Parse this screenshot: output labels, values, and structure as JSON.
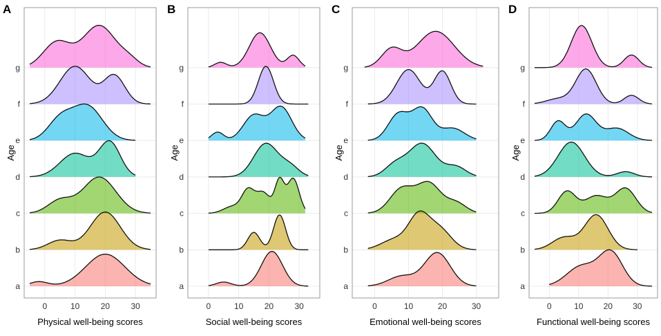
{
  "chart_data": [
    {
      "type": "ridgeline",
      "panel_label": "A",
      "xlabel": "Physical well-being scores",
      "ylabel": "Age",
      "xlim": [
        -5,
        35
      ],
      "xticks": [
        0,
        10,
        20,
        30
      ],
      "tick_labels": [
        "0",
        "10",
        "20",
        "30"
      ],
      "categories": [
        "a",
        "b",
        "c",
        "d",
        "e",
        "f",
        "g"
      ],
      "colors": [
        "#F8766D",
        "#C49A00",
        "#53B400",
        "#00C094",
        "#00B6EB",
        "#A58AFF",
        "#FB61D7"
      ],
      "series": [
        {
          "name": "a",
          "peaks": [
            {
              "mu": -2,
              "sd": 3,
              "h": 0.12
            },
            {
              "mu": 20,
              "sd": 6.5,
              "h": 0.85
            }
          ],
          "scale": 1.3,
          "range": [
            -5,
            35
          ]
        },
        {
          "name": "b",
          "peaks": [
            {
              "mu": 5,
              "sd": 4,
              "h": 0.25
            },
            {
              "mu": 20,
              "sd": 5,
              "h": 1.0
            }
          ],
          "scale": 1.3,
          "range": [
            -5,
            35
          ]
        },
        {
          "name": "c",
          "peaks": [
            {
              "mu": 5,
              "sd": 4,
              "h": 0.35
            },
            {
              "mu": 18,
              "sd": 5.5,
              "h": 1.0
            }
          ],
          "scale": 1.25,
          "range": [
            -5,
            35
          ]
        },
        {
          "name": "d",
          "peaks": [
            {
              "mu": 10,
              "sd": 5,
              "h": 0.65
            },
            {
              "mu": 21.5,
              "sd": 3.5,
              "h": 0.95
            }
          ],
          "scale": 1.25,
          "range": [
            -5,
            30
          ]
        },
        {
          "name": "e",
          "peaks": [
            {
              "mu": 5,
              "sd": 4,
              "h": 0.55
            },
            {
              "mu": 14,
              "sd": 5,
              "h": 0.95
            }
          ],
          "scale": 1.25,
          "range": [
            -5,
            30
          ]
        },
        {
          "name": "f",
          "peaks": [
            {
              "mu": 10,
              "sd": 5,
              "h": 1.0
            },
            {
              "mu": 23,
              "sd": 3.5,
              "h": 0.75
            }
          ],
          "scale": 1.3,
          "range": [
            -5,
            35
          ]
        },
        {
          "name": "g",
          "peaks": [
            {
              "mu": 4,
              "sd": 4.5,
              "h": 0.6
            },
            {
              "mu": 18,
              "sd": 5.5,
              "h": 1.0
            },
            {
              "mu": 28,
              "sd": 3,
              "h": 0.15
            }
          ],
          "scale": 1.45,
          "range": [
            -5,
            35
          ]
        }
      ]
    },
    {
      "type": "ridgeline",
      "panel_label": "B",
      "xlabel": "Social well-being scores",
      "ylabel": "Age",
      "xlim": [
        -5,
        35
      ],
      "xticks": [
        0,
        10,
        20,
        30
      ],
      "tick_labels": [
        "0",
        "10",
        "20",
        "30"
      ],
      "categories": [
        "a",
        "b",
        "c",
        "d",
        "e",
        "f",
        "g"
      ],
      "colors": [
        "#F8766D",
        "#C49A00",
        "#53B400",
        "#00C094",
        "#00B6EB",
        "#A58AFF",
        "#FB61D7"
      ],
      "series": [
        {
          "name": "a",
          "peaks": [
            {
              "mu": 5,
              "sd": 2.5,
              "h": 0.12
            },
            {
              "mu": 21,
              "sd": 3.5,
              "h": 1.0
            }
          ],
          "scale": 1.2,
          "range": [
            0,
            33
          ]
        },
        {
          "name": "b",
          "peaks": [
            {
              "mu": 15,
              "sd": 2,
              "h": 0.5
            },
            {
              "mu": 23.5,
              "sd": 2,
              "h": 1.0
            }
          ],
          "scale": 1.2,
          "range": [
            0,
            33
          ]
        },
        {
          "name": "c",
          "peaks": [
            {
              "mu": 8,
              "sd": 3,
              "h": 0.2
            },
            {
              "mu": 13,
              "sd": 2,
              "h": 0.6
            },
            {
              "mu": 18,
              "sd": 2.5,
              "h": 0.6
            },
            {
              "mu": 23.5,
              "sd": 1.5,
              "h": 0.9
            },
            {
              "mu": 28,
              "sd": 2,
              "h": 1.0
            }
          ],
          "scale": 1.2,
          "range": [
            0,
            32
          ]
        },
        {
          "name": "d",
          "peaks": [
            {
              "mu": 19,
              "sd": 4,
              "h": 1.0
            },
            {
              "mu": 27,
              "sd": 3,
              "h": 0.3
            }
          ],
          "scale": 1.15,
          "range": [
            0,
            33
          ]
        },
        {
          "name": "e",
          "peaks": [
            {
              "mu": 3,
              "sd": 2,
              "h": 0.25
            },
            {
              "mu": 15,
              "sd": 3.5,
              "h": 0.75
            },
            {
              "mu": 24,
              "sd": 3.5,
              "h": 1.0
            }
          ],
          "scale": 1.15,
          "range": [
            0,
            32
          ]
        },
        {
          "name": "f",
          "peaks": [
            {
              "mu": 19,
              "sd": 2.5,
              "h": 1.0
            }
          ],
          "scale": 1.3,
          "range": [
            0,
            33
          ]
        },
        {
          "name": "g",
          "peaks": [
            {
              "mu": 4,
              "sd": 2,
              "h": 0.15
            },
            {
              "mu": 17,
              "sd": 3.5,
              "h": 1.0
            },
            {
              "mu": 28,
              "sd": 2,
              "h": 0.35
            }
          ],
          "scale": 1.2,
          "range": [
            0,
            32
          ]
        }
      ]
    },
    {
      "type": "ridgeline",
      "panel_label": "C",
      "xlabel": "Emotional well-being scores",
      "ylabel": "Age",
      "xlim": [
        -5,
        35
      ],
      "xticks": [
        0,
        10,
        20,
        30
      ],
      "tick_labels": [
        "0",
        "10",
        "20",
        "30"
      ],
      "categories": [
        "a",
        "b",
        "c",
        "d",
        "e",
        "f",
        "g"
      ],
      "colors": [
        "#F8766D",
        "#C49A00",
        "#53B400",
        "#00C094",
        "#00B6EB",
        "#A58AFF",
        "#FB61D7"
      ],
      "series": [
        {
          "name": "a",
          "peaks": [
            {
              "mu": 8,
              "sd": 4,
              "h": 0.3
            },
            {
              "mu": 18.5,
              "sd": 3.8,
              "h": 1.0
            }
          ],
          "scale": 1.15,
          "range": [
            -2,
            30
          ]
        },
        {
          "name": "b",
          "peaks": [
            {
              "mu": 6,
              "sd": 4,
              "h": 0.3
            },
            {
              "mu": 13,
              "sd": 3,
              "h": 0.9
            },
            {
              "mu": 19,
              "sd": 3.5,
              "h": 0.6
            }
          ],
          "scale": 1.2,
          "range": [
            -2,
            30
          ]
        },
        {
          "name": "c",
          "peaks": [
            {
              "mu": 8,
              "sd": 3.5,
              "h": 0.7
            },
            {
              "mu": 16,
              "sd": 3.5,
              "h": 0.85
            },
            {
              "mu": 24,
              "sd": 3,
              "h": 0.3
            }
          ],
          "scale": 1.2,
          "range": [
            -2,
            30
          ]
        },
        {
          "name": "d",
          "peaks": [
            {
              "mu": 6,
              "sd": 3,
              "h": 0.35
            },
            {
              "mu": 14,
              "sd": 4,
              "h": 1.0
            },
            {
              "mu": 24,
              "sd": 3,
              "h": 0.3
            }
          ],
          "scale": 1.15,
          "range": [
            -2,
            30
          ]
        },
        {
          "name": "e",
          "peaks": [
            {
              "mu": 7,
              "sd": 3,
              "h": 0.75
            },
            {
              "mu": 14,
              "sd": 3,
              "h": 0.9
            },
            {
              "mu": 23,
              "sd": 3.5,
              "h": 0.35
            }
          ],
          "scale": 1.2,
          "range": [
            -2,
            30
          ]
        },
        {
          "name": "f",
          "peaks": [
            {
              "mu": 10,
              "sd": 3.5,
              "h": 0.95
            },
            {
              "mu": 20,
              "sd": 2.5,
              "h": 0.9
            }
          ],
          "scale": 1.25,
          "range": [
            -2,
            30
          ]
        },
        {
          "name": "g",
          "peaks": [
            {
              "mu": 5,
              "sd": 3,
              "h": 0.5
            },
            {
              "mu": 18,
              "sd": 5.5,
              "h": 1.0
            }
          ],
          "scale": 1.25,
          "range": [
            -3,
            32
          ]
        }
      ]
    },
    {
      "type": "ridgeline",
      "panel_label": "D",
      "xlabel": "Functional well-being scores",
      "ylabel": "Age",
      "xlim": [
        -5,
        35
      ],
      "xticks": [
        0,
        10,
        20,
        30
      ],
      "tick_labels": [
        "0",
        "10",
        "20",
        "30"
      ],
      "categories": [
        "a",
        "b",
        "c",
        "d",
        "e",
        "f",
        "g"
      ],
      "colors": [
        "#F8766D",
        "#C49A00",
        "#53B400",
        "#00C094",
        "#00B6EB",
        "#A58AFF",
        "#FB61D7"
      ],
      "series": [
        {
          "name": "a",
          "peaks": [
            {
              "mu": 11,
              "sd": 5,
              "h": 0.6
            },
            {
              "mu": 21,
              "sd": 4,
              "h": 1.0
            }
          ],
          "scale": 1.15,
          "range": [
            0,
            35
          ]
        },
        {
          "name": "b",
          "peaks": [
            {
              "mu": 5,
              "sd": 4,
              "h": 0.35
            },
            {
              "mu": 16,
              "sd": 4,
              "h": 1.0
            }
          ],
          "scale": 1.2,
          "range": [
            -5,
            30
          ]
        },
        {
          "name": "c",
          "peaks": [
            {
              "mu": 6,
              "sd": 3,
              "h": 0.75
            },
            {
              "mu": 16,
              "sd": 4,
              "h": 0.6
            },
            {
              "mu": 26,
              "sd": 3.5,
              "h": 0.85
            }
          ],
          "scale": 1.0,
          "range": [
            -5,
            35
          ]
        },
        {
          "name": "d",
          "peaks": [
            {
              "mu": 7.5,
              "sd": 4.5,
              "h": 1.0
            },
            {
              "mu": 26,
              "sd": 3,
              "h": 0.15
            }
          ],
          "scale": 1.2,
          "range": [
            -5,
            35
          ]
        },
        {
          "name": "e",
          "peaks": [
            {
              "mu": 3,
              "sd": 2.5,
              "h": 0.55
            },
            {
              "mu": 12.5,
              "sd": 3.5,
              "h": 0.75
            },
            {
              "mu": 23,
              "sd": 4,
              "h": 0.35
            }
          ],
          "scale": 1.2,
          "range": [
            -5,
            35
          ]
        },
        {
          "name": "f",
          "peaks": [
            {
              "mu": 3,
              "sd": 4,
              "h": 0.15
            },
            {
              "mu": 12.5,
              "sd": 3.5,
              "h": 1.0
            },
            {
              "mu": 28,
              "sd": 2.5,
              "h": 0.25
            }
          ],
          "scale": 1.2,
          "range": [
            -5,
            35
          ]
        },
        {
          "name": "g",
          "peaks": [
            {
              "mu": 11,
              "sd": 3.5,
              "h": 1.0
            },
            {
              "mu": 28,
              "sd": 2.5,
              "h": 0.3
            }
          ],
          "scale": 1.45,
          "range": [
            -5,
            35
          ]
        }
      ]
    }
  ]
}
